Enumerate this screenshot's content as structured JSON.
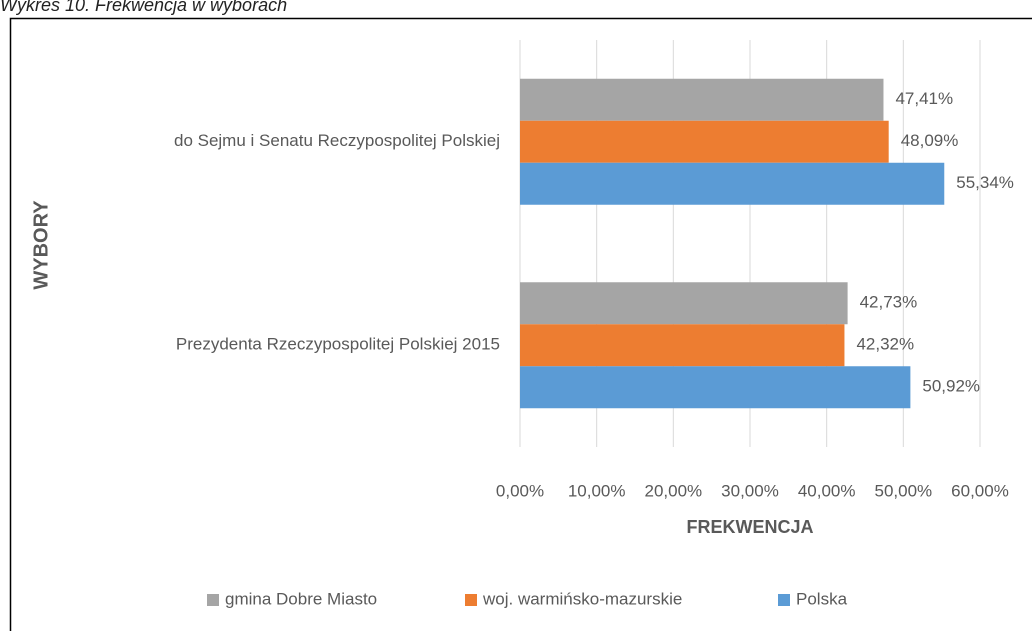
{
  "chart_data": {
    "type": "hbar",
    "title": "Wykres 10. Frekwencja w wyborach",
    "x_label": "FREKWENCJA",
    "y_label": "WYBORY",
    "categories": [
      "do Sejmu i Senatu Reczypospolitej Polskiej",
      "Prezydenta Rzeczypospolitej Polskiej 2015"
    ],
    "series": [
      {
        "name": "gmina Dobre Miasto",
        "color": "#a5a5a5",
        "values": [
          47.41,
          42.73
        ],
        "value_labels": [
          "47,41%",
          "42,73%"
        ]
      },
      {
        "name": "woj. warmińsko-mazurskie",
        "color": "#ed7d31",
        "values": [
          48.09,
          42.32
        ],
        "value_labels": [
          "48,09%",
          "42,32%"
        ]
      },
      {
        "name": "Polska",
        "color": "#5b9bd5",
        "values": [
          55.34,
          50.92
        ],
        "value_labels": [
          "55,34%",
          "50,92%"
        ]
      }
    ],
    "xlim": [
      0,
      60
    ],
    "xticks": [
      {
        "value": 0,
        "label": "0,00%"
      },
      {
        "value": 10,
        "label": "10,00%"
      },
      {
        "value": 20,
        "label": "20,00%"
      },
      {
        "value": 30,
        "label": "30,00%"
      },
      {
        "value": 40,
        "label": "40,00%"
      },
      {
        "value": 50,
        "label": "50,00%"
      },
      {
        "value": 60,
        "label": "60,00%"
      }
    ],
    "grid": true,
    "legend": "bottom"
  }
}
